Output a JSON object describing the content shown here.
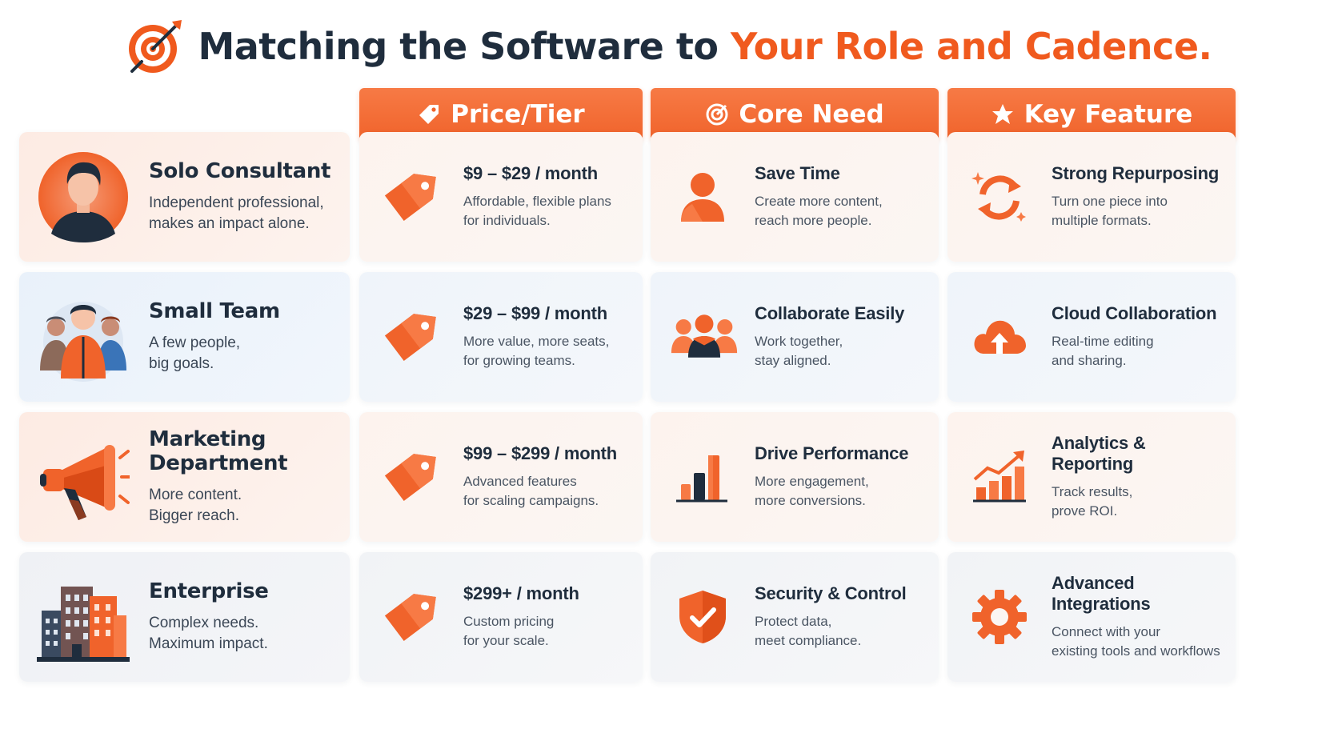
{
  "header": {
    "title_main": "Matching the Software to ",
    "title_accent": "Your Role and Cadence",
    "title_end": ".",
    "icon": "target-arrow-icon"
  },
  "columns": [
    {
      "label": "Price/Tier",
      "icon": "price-tag-icon"
    },
    {
      "label": "Core Need",
      "icon": "target-icon"
    },
    {
      "label": "Key Feature",
      "icon": "star-icon"
    }
  ],
  "rows": [
    {
      "role": {
        "title": "Solo Consultant",
        "desc1": "Independent professional,",
        "desc2": "makes an impact alone.",
        "icon": "person-avatar-icon"
      },
      "price": {
        "title": "$9 – $29 / month",
        "desc1": "Affordable, flexible plans",
        "desc2": "for individuals.",
        "icon": "price-tag-icon"
      },
      "need": {
        "title": "Save Time",
        "desc1": "Create more content,",
        "desc2": "reach more people.",
        "icon": "person-icon"
      },
      "feature": {
        "title": "Strong Repurposing",
        "desc1": "Turn one piece into",
        "desc2": "multiple formats.",
        "icon": "refresh-arrows-icon"
      }
    },
    {
      "role": {
        "title": "Small Team",
        "desc1": "A few people,",
        "desc2": "big goals.",
        "icon": "team-group-icon"
      },
      "price": {
        "title": "$29 – $99 / month",
        "desc1": "More value, more seats,",
        "desc2": "for growing teams.",
        "icon": "price-tag-icon"
      },
      "need": {
        "title": "Collaborate Easily",
        "desc1": "Work together,",
        "desc2": "stay aligned.",
        "icon": "people-group-icon"
      },
      "feature": {
        "title": "Cloud Collaboration",
        "desc1": "Real-time editing",
        "desc2": "and sharing.",
        "icon": "cloud-upload-icon"
      }
    },
    {
      "role": {
        "title": "Marketing Department",
        "desc1": "More content.",
        "desc2": "Bigger reach.",
        "icon": "megaphone-icon"
      },
      "price": {
        "title": "$99 – $299 / month",
        "desc1": "Advanced features",
        "desc2": "for scaling campaigns.",
        "icon": "price-tag-icon"
      },
      "need": {
        "title": "Drive Performance",
        "desc1": "More engagement,",
        "desc2": "more conversions.",
        "icon": "bar-chart-icon"
      },
      "feature": {
        "title": "Analytics & Reporting",
        "desc1": "Track results,",
        "desc2": "prove ROI.",
        "icon": "trend-chart-icon"
      }
    },
    {
      "role": {
        "title": "Enterprise",
        "desc1": "Complex needs.",
        "desc2": "Maximum impact.",
        "icon": "buildings-icon"
      },
      "price": {
        "title": "$299+ / month",
        "desc1": "Custom pricing",
        "desc2": "for your scale.",
        "icon": "price-tag-icon"
      },
      "need": {
        "title": "Security & Control",
        "desc1": "Protect data,",
        "desc2": "meet compliance.",
        "icon": "shield-check-icon"
      },
      "feature": {
        "title": "Advanced Integrations",
        "desc1": "Connect with your",
        "desc2": "existing tools and workflows",
        "icon": "gear-icon"
      }
    }
  ],
  "colors": {
    "accent": "#f05a1e",
    "dark": "#1f2d3d",
    "header_bg": "#f0632b"
  }
}
